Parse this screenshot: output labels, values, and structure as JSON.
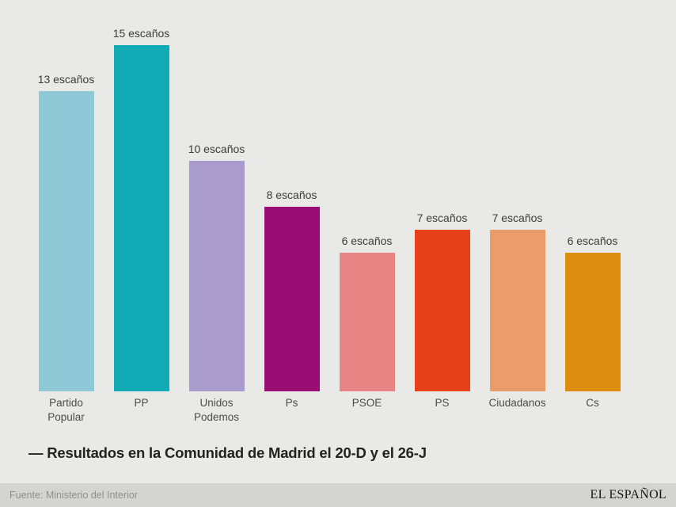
{
  "chart_data": {
    "type": "bar",
    "title": "— Resultados en la Comunidad de Madrid el 20-D y el 26-J",
    "categories": [
      "Partido\nPopular",
      "PP",
      "Unidos\nPodemos",
      "Ps",
      "PSOE",
      "PS",
      "Ciudadanos",
      "Cs"
    ],
    "values": [
      13,
      15,
      10,
      8,
      6,
      7,
      7,
      6
    ],
    "value_labels": [
      "13 escaños",
      "15 escaños",
      "10 escaños",
      "8 escaños",
      "6 escaños",
      "7 escaños",
      "7 escaños",
      "6 escaños"
    ],
    "bar_colors": [
      "#8FC9D7",
      "#12AAB5",
      "#A99CCD",
      "#9A0D72",
      "#E88584",
      "#E7411B",
      "#EC9C6B",
      "#DD8D10"
    ],
    "unit": "escaños",
    "ylim": [
      0,
      15
    ],
    "grid": false,
    "legend": false,
    "xlabel": "",
    "ylabel": ""
  },
  "footer": {
    "source": "Fuente: Ministerio del Interior",
    "brand": "EL ESPAÑOL"
  },
  "colors": {
    "background": "#E9E9E7",
    "footer_background": "#D4D4D2"
  }
}
